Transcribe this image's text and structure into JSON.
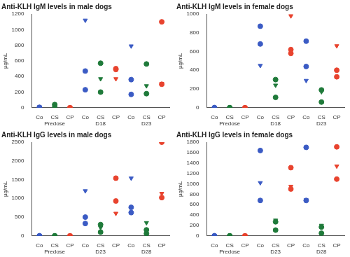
{
  "chart_data": [
    {
      "type": "scatter",
      "title": "Anti-KLH IgM levels in male dogs",
      "y_label": "µg/mL",
      "categories": [
        "Co",
        "CS",
        "CP",
        "Co",
        "CS",
        "CP",
        "Co",
        "CS",
        "CP"
      ],
      "groups": [
        "Predose",
        "D18",
        "D23"
      ],
      "ylim": [
        0,
        1200
      ],
      "yticks": [
        0,
        200,
        400,
        600,
        800,
        1000,
        1200
      ],
      "grid": false,
      "series": [
        {
          "color": "#3b5bc4",
          "marker": "circle",
          "values": [
            0,
            null,
            null,
            470,
            null,
            null,
            360,
            null,
            null
          ]
        },
        {
          "color": "#3b5bc4",
          "marker": "circle",
          "values": [
            5,
            null,
            null,
            230,
            null,
            null,
            170,
            null,
            null
          ]
        },
        {
          "color": "#3b5bc4",
          "marker": "triangle_down",
          "values": [
            10,
            null,
            null,
            1120,
            null,
            null,
            790,
            null,
            null
          ]
        },
        {
          "color": "#1f7a3a",
          "marker": "circle",
          "values": [
            null,
            40,
            null,
            null,
            570,
            null,
            null,
            560,
            null
          ]
        },
        {
          "color": "#1f7a3a",
          "marker": "circle",
          "values": [
            null,
            5,
            null,
            null,
            200,
            null,
            null,
            180,
            null
          ]
        },
        {
          "color": "#1f7a3a",
          "marker": "triangle_down",
          "values": [
            null,
            15,
            null,
            null,
            370,
            null,
            null,
            280,
            null
          ]
        },
        {
          "color": "#e8432e",
          "marker": "circle",
          "values": [
            null,
            null,
            0,
            null,
            null,
            500,
            null,
            null,
            1100
          ]
        },
        {
          "color": "#e8432e",
          "marker": "circle",
          "values": [
            null,
            null,
            0,
            null,
            null,
            490,
            null,
            null,
            300
          ]
        },
        {
          "color": "#e8432e",
          "marker": "triangle_down",
          "values": [
            null,
            null,
            0,
            null,
            null,
            370,
            null,
            null,
            310
          ]
        }
      ]
    },
    {
      "type": "scatter",
      "title": "Anti-KLH IgM levels in female dogs",
      "y_label": "µg/mL",
      "categories": [
        "Co",
        "CS",
        "CP",
        "Co",
        "CS",
        "CP",
        "Co",
        "CS",
        "CP"
      ],
      "groups": [
        "Predose",
        "D18",
        "D23"
      ],
      "ylim": [
        0,
        1000
      ],
      "yticks": [
        0,
        200,
        400,
        600,
        800,
        1000
      ],
      "grid": false,
      "series": [
        {
          "color": "#3b5bc4",
          "marker": "circle",
          "values": [
            0,
            null,
            null,
            870,
            null,
            null,
            710,
            null,
            null
          ]
        },
        {
          "color": "#3b5bc4",
          "marker": "circle",
          "values": [
            0,
            null,
            null,
            680,
            null,
            null,
            440,
            null,
            null
          ]
        },
        {
          "color": "#3b5bc4",
          "marker": "triangle_down",
          "values": [
            0,
            null,
            null,
            450,
            null,
            null,
            290,
            null,
            null
          ]
        },
        {
          "color": "#1f7a3a",
          "marker": "circle",
          "values": [
            null,
            0,
            null,
            null,
            300,
            null,
            null,
            190,
            null
          ]
        },
        {
          "color": "#1f7a3a",
          "marker": "circle",
          "values": [
            null,
            0,
            null,
            null,
            110,
            null,
            null,
            60,
            null
          ]
        },
        {
          "color": "#1f7a3a",
          "marker": "triangle_down",
          "values": [
            null,
            0,
            null,
            null,
            240,
            null,
            null,
            170,
            null
          ]
        },
        {
          "color": "#e8432e",
          "marker": "circle",
          "values": [
            null,
            null,
            0,
            null,
            null,
            620,
            null,
            null,
            400
          ]
        },
        {
          "color": "#e8432e",
          "marker": "circle",
          "values": [
            null,
            null,
            0,
            null,
            null,
            580,
            null,
            null,
            330
          ]
        },
        {
          "color": "#e8432e",
          "marker": "triangle_down",
          "values": [
            null,
            null,
            0,
            null,
            null,
            980,
            null,
            null,
            660
          ]
        }
      ]
    },
    {
      "type": "scatter",
      "title": "Anti-KLH IgG levels in male dogs",
      "y_label": "µg/mL",
      "categories": [
        "Co",
        "CS",
        "CP",
        "Co",
        "CS",
        "CP",
        "Co",
        "CS",
        "CP"
      ],
      "groups": [
        "Predose",
        "D23",
        "D28"
      ],
      "ylim": [
        0,
        2500
      ],
      "yticks": [
        0,
        500,
        1000,
        1500,
        2000,
        2500
      ],
      "grid": false,
      "series": [
        {
          "color": "#3b5bc4",
          "marker": "circle",
          "values": [
            0,
            null,
            null,
            500,
            null,
            null,
            760,
            null,
            null
          ]
        },
        {
          "color": "#3b5bc4",
          "marker": "circle",
          "values": [
            0,
            null,
            null,
            330,
            null,
            null,
            620,
            null,
            null
          ]
        },
        {
          "color": "#3b5bc4",
          "marker": "triangle_down",
          "values": [
            0,
            null,
            null,
            1200,
            null,
            null,
            1540,
            null,
            null
          ]
        },
        {
          "color": "#1f7a3a",
          "marker": "circle",
          "values": [
            null,
            0,
            null,
            null,
            300,
            null,
            null,
            160,
            null
          ]
        },
        {
          "color": "#1f7a3a",
          "marker": "circle",
          "values": [
            null,
            0,
            null,
            null,
            100,
            null,
            null,
            60,
            null
          ]
        },
        {
          "color": "#1f7a3a",
          "marker": "triangle_down",
          "values": [
            null,
            0,
            null,
            null,
            220,
            null,
            null,
            350,
            null
          ]
        },
        {
          "color": "#e8432e",
          "marker": "circle",
          "values": [
            null,
            null,
            0,
            null,
            null,
            1540,
            null,
            null,
            2500
          ]
        },
        {
          "color": "#e8432e",
          "marker": "circle",
          "values": [
            null,
            null,
            0,
            null,
            null,
            930,
            null,
            null,
            1020
          ]
        },
        {
          "color": "#e8432e",
          "marker": "triangle_down",
          "values": [
            null,
            null,
            0,
            null,
            null,
            600,
            null,
            null,
            1130
          ]
        }
      ]
    },
    {
      "type": "scatter",
      "title": "Anti-KLH IgG levels in female dogs",
      "y_label": "µg/mL",
      "categories": [
        "Co",
        "CS",
        "CP",
        "Co",
        "CS",
        "CP",
        "Co",
        "CS",
        "CP"
      ],
      "groups": [
        "Predose",
        "D23",
        "D28"
      ],
      "ylim": [
        0,
        1800
      ],
      "yticks": [
        0,
        200,
        400,
        600,
        800,
        1000,
        1200,
        1400,
        1600,
        1800
      ],
      "grid": false,
      "series": [
        {
          "color": "#3b5bc4",
          "marker": "circle",
          "values": [
            0,
            null,
            null,
            1640,
            null,
            null,
            1700,
            null,
            null
          ]
        },
        {
          "color": "#3b5bc4",
          "marker": "circle",
          "values": [
            0,
            null,
            null,
            680,
            null,
            null,
            680,
            null,
            null
          ]
        },
        {
          "color": "#3b5bc4",
          "marker": "triangle_down",
          "values": [
            0,
            null,
            null,
            1020,
            null,
            null,
            690,
            null,
            null
          ]
        },
        {
          "color": "#1f7a3a",
          "marker": "circle",
          "values": [
            null,
            0,
            null,
            null,
            270,
            null,
            null,
            170,
            null
          ]
        },
        {
          "color": "#1f7a3a",
          "marker": "circle",
          "values": [
            null,
            0,
            null,
            null,
            110,
            null,
            null,
            50,
            null
          ]
        },
        {
          "color": "#1f7a3a",
          "marker": "triangle_down",
          "values": [
            null,
            0,
            null,
            null,
            300,
            null,
            null,
            200,
            null
          ]
        },
        {
          "color": "#e8432e",
          "marker": "circle",
          "values": [
            null,
            null,
            0,
            null,
            null,
            1310,
            null,
            null,
            1710
          ]
        },
        {
          "color": "#e8432e",
          "marker": "circle",
          "values": [
            null,
            null,
            0,
            null,
            null,
            900,
            null,
            null,
            1090
          ]
        },
        {
          "color": "#e8432e",
          "marker": "triangle_down",
          "values": [
            null,
            null,
            0,
            null,
            null,
            950,
            null,
            null,
            1340
          ]
        }
      ]
    }
  ]
}
